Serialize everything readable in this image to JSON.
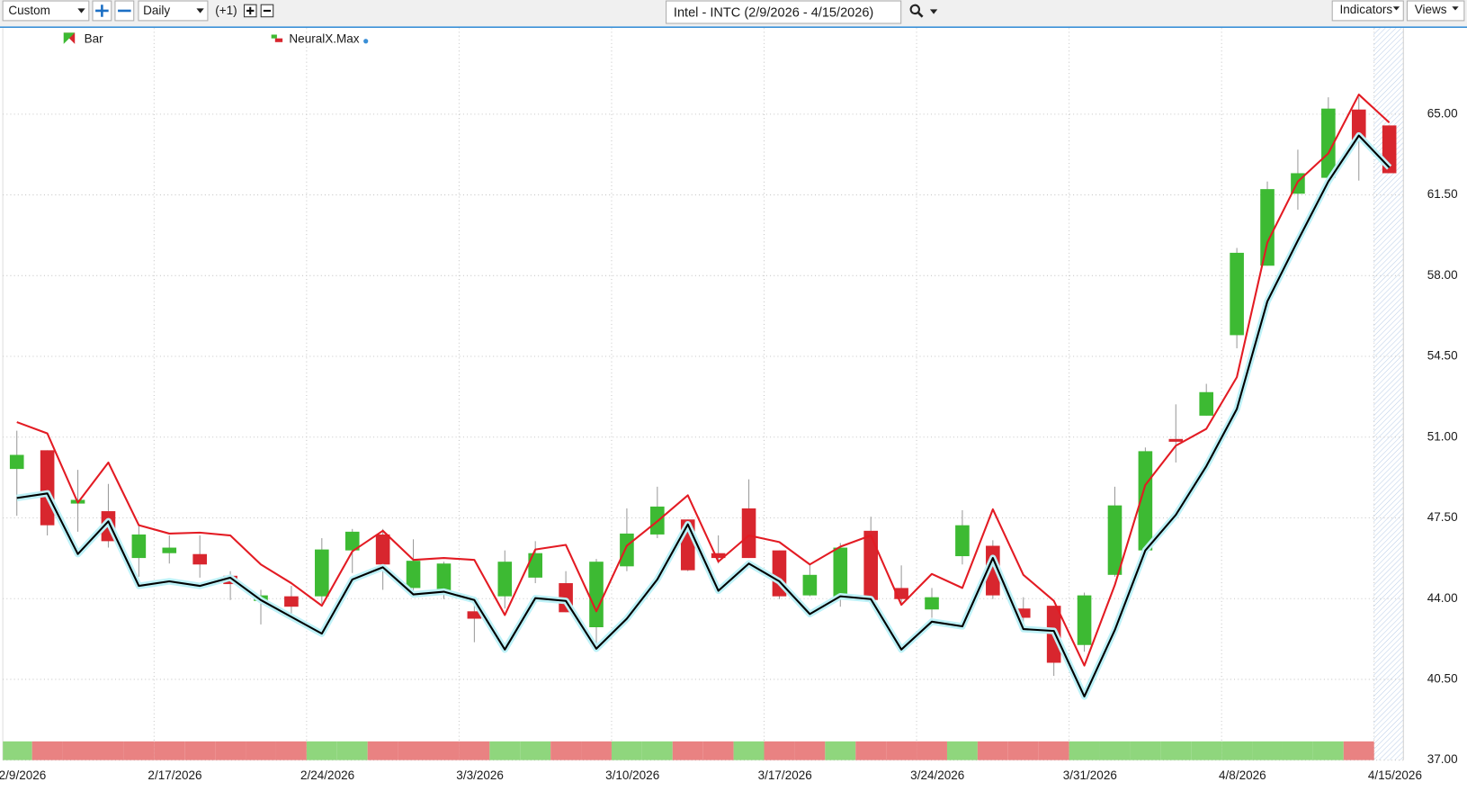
{
  "toolbar": {
    "range": "Custom",
    "interval": "Daily",
    "offset": "(+1)",
    "symbol": "Intel - INTC (2/9/2026 - 4/15/2026)",
    "indicators": "Indicators",
    "views": "Views"
  },
  "chart_data": {
    "type": "candlestick",
    "categories": [
      "2/9/2026",
      null,
      null,
      null,
      null,
      "2/17/2026",
      null,
      null,
      null,
      null,
      "2/24/2026",
      null,
      null,
      null,
      null,
      "3/3/2026",
      null,
      null,
      null,
      null,
      "3/10/2026",
      null,
      null,
      null,
      null,
      "3/17/2026",
      null,
      null,
      null,
      null,
      "3/24/2026",
      null,
      null,
      null,
      null,
      "3/31/2026",
      null,
      null,
      null,
      null,
      "4/8/2026",
      null,
      null,
      null,
      null,
      "4/15/2026"
    ],
    "series": [
      {
        "name": "Bar",
        "up_color": "#3dba33",
        "down_color": "#d8262e",
        "wick_color": "#9a9a9a",
        "open": [
          49.62,
          50.43,
          48.12,
          47.79,
          45.76,
          45.97,
          45.93,
          44.99,
          43.9,
          44.1,
          44.1,
          46.09,
          46.78,
          44.46,
          44.22,
          43.45,
          44.1,
          44.91,
          44.67,
          42.76,
          45.4,
          46.78,
          47.43,
          45.97,
          47.91,
          46.09,
          44.14,
          43.98,
          46.94,
          44.46,
          43.53,
          45.84,
          46.29,
          43.57,
          43.69,
          41.99,
          45.03,
          46.09,
          50.92,
          51.93,
          55.42,
          58.43,
          61.55,
          62.24,
          65.2,
          64.51
        ],
        "high": [
          51.28,
          50.43,
          49.58,
          48.97,
          47.22,
          46.74,
          46.74,
          45.19,
          44.38,
          44.55,
          46.62,
          47.02,
          47.02,
          46.57,
          45.6,
          43.98,
          46.09,
          46.49,
          45.19,
          45.72,
          47.91,
          48.85,
          47.43,
          46.74,
          49.17,
          46.09,
          45.52,
          46.41,
          47.55,
          45.44,
          44.46,
          47.83,
          46.53,
          44.06,
          43.69,
          44.26,
          48.85,
          50.55,
          52.42,
          53.31,
          59.2,
          62.08,
          63.46,
          65.73,
          65.73,
          64.51
        ],
        "low": [
          47.59,
          46.74,
          46.9,
          46.21,
          44.95,
          45.52,
          44.91,
          43.94,
          42.88,
          43.17,
          43.77,
          45.11,
          44.38,
          44.06,
          43.98,
          42.11,
          43.57,
          44.67,
          43.41,
          41.7,
          45.19,
          46.62,
          45.19,
          45.52,
          45.76,
          43.98,
          44.1,
          43.65,
          43.94,
          43.77,
          43.17,
          45.48,
          43.98,
          42.96,
          40.65,
          41.7,
          44.95,
          46.09,
          49.9,
          51.93,
          54.85,
          58.43,
          60.86,
          62.24,
          62.12,
          62.44
        ],
        "close": [
          50.23,
          47.18,
          48.28,
          46.49,
          46.78,
          46.21,
          45.48,
          44.63,
          44.14,
          43.65,
          46.13,
          46.9,
          45.48,
          45.64,
          45.52,
          43.13,
          45.6,
          45.97,
          43.41,
          45.6,
          46.82,
          47.99,
          45.23,
          45.76,
          45.76,
          44.1,
          45.03,
          46.21,
          43.94,
          43.98,
          44.06,
          47.18,
          44.14,
          43.17,
          41.22,
          44.14,
          48.04,
          50.39,
          50.8,
          52.95,
          58.99,
          61.75,
          62.44,
          65.24,
          63.86,
          62.44
        ]
      },
      {
        "name": "NeuralX.Max",
        "upper_color": "#e31b23",
        "lower_color": "#000000",
        "glow_color": "#bdf1f7",
        "upper": [
          51.65,
          51.16,
          48.16,
          49.9,
          47.18,
          46.82,
          46.86,
          46.74,
          45.48,
          44.67,
          43.69,
          46.05,
          46.94,
          45.68,
          45.76,
          45.68,
          43.29,
          46.13,
          46.33,
          43.45,
          46.29,
          47.35,
          48.48,
          45.6,
          46.74,
          46.45,
          45.48,
          46.25,
          46.74,
          43.73,
          45.07,
          44.46,
          47.87,
          45.03,
          43.9,
          41.1,
          44.59,
          48.93,
          50.63,
          51.36,
          53.6,
          59.44,
          62.08,
          63.3,
          65.85,
          64.63
        ],
        "lower": [
          48.36,
          48.56,
          45.93,
          47.35,
          44.55,
          44.75,
          44.55,
          44.91,
          43.94,
          43.21,
          42.48,
          44.83,
          45.36,
          44.18,
          44.3,
          43.94,
          41.79,
          44.02,
          43.9,
          41.83,
          43.13,
          44.83,
          47.22,
          44.34,
          45.52,
          44.75,
          43.33,
          44.1,
          43.98,
          41.79,
          43.0,
          42.8,
          45.76,
          42.68,
          42.6,
          39.76,
          42.64,
          46.09,
          47.63,
          49.74,
          52.22,
          56.88,
          59.52,
          62.08,
          64.07,
          62.69
        ]
      }
    ],
    "signal": {
      "up_color": "#8fd67d",
      "down_color": "#e98282",
      "values": [
        1,
        -1,
        -1,
        -1,
        -1,
        -1,
        -1,
        -1,
        -1,
        -1,
        1,
        1,
        -1,
        -1,
        -1,
        -1,
        1,
        1,
        -1,
        -1,
        1,
        1,
        -1,
        -1,
        1,
        -1,
        -1,
        1,
        -1,
        -1,
        -1,
        1,
        -1,
        -1,
        -1,
        1,
        1,
        1,
        1,
        1,
        1,
        1,
        1,
        1,
        -1,
        null
      ]
    },
    "ylim": [
      37,
      68.73
    ],
    "yticks": [
      {
        "value": 37,
        "label": "37.00"
      },
      {
        "value": 40.5,
        "label": "40.50"
      },
      {
        "value": 44,
        "label": "44.00"
      },
      {
        "value": 47.5,
        "label": "47.50"
      },
      {
        "value": 51,
        "label": "51.00"
      },
      {
        "value": 54.5,
        "label": "54.50"
      },
      {
        "value": 58,
        "label": "58.00"
      },
      {
        "value": 61.5,
        "label": "61.50"
      },
      {
        "value": 65,
        "label": "65.00"
      }
    ],
    "grid": true
  }
}
